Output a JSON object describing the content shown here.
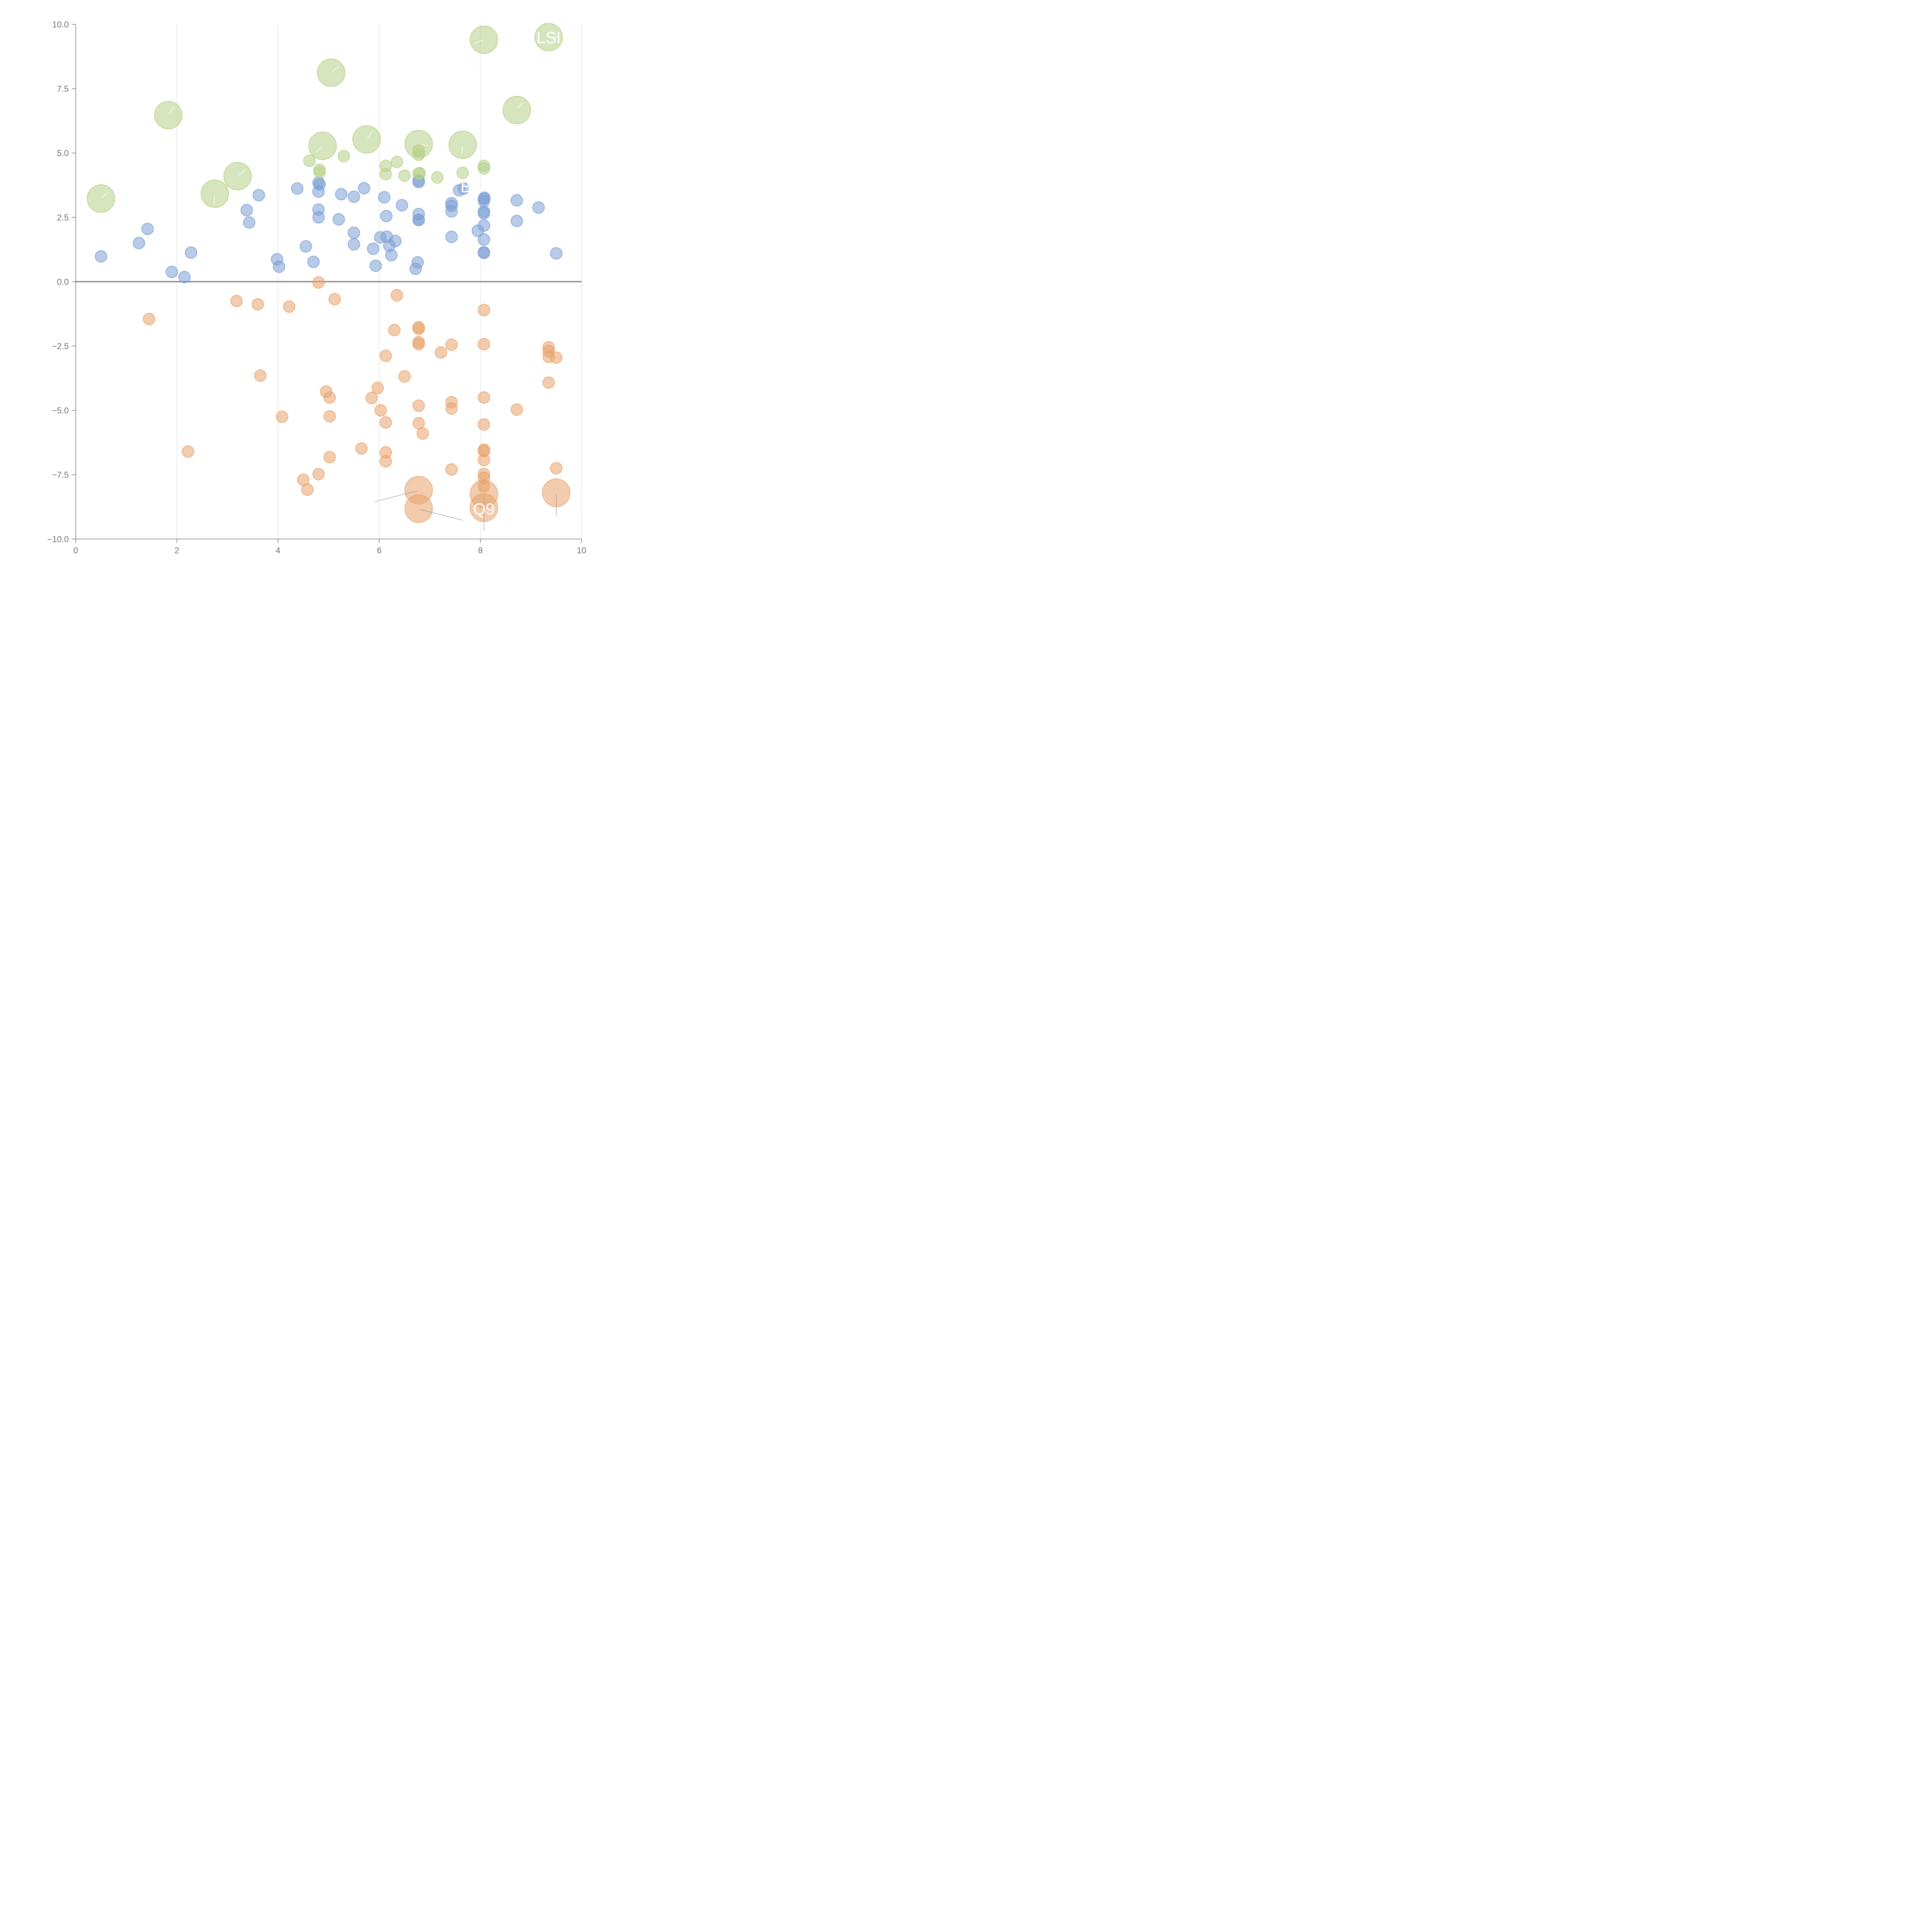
{
  "chart_data": {
    "type": "scatter",
    "title": "",
    "xlabel": "",
    "ylabel": "",
    "xlim": [
      0,
      10
    ],
    "ylim": [
      -10,
      10
    ],
    "x_ticks": [
      0,
      2,
      4,
      6,
      8,
      10
    ],
    "y_ticks": [
      -10,
      -7.5,
      -5,
      -2.5,
      0,
      2.5,
      5,
      7.5,
      10
    ],
    "x_tick_labels": [
      "0",
      "2",
      "4",
      "6",
      "8",
      "10"
    ],
    "y_tick_labels": [
      "−10.0",
      "−7.5",
      "−5.0",
      "−2.5",
      "0.0",
      "2.5",
      "5.0",
      "7.5",
      "10.0"
    ],
    "grid": "vertical",
    "colors": {
      "blue": "#7b9fd4",
      "orange": "#e8a26a",
      "green": "#b5cf86",
      "axis": "#7a7a7a",
      "grid": "#d9d9d9"
    },
    "series": [
      {
        "name": "blue",
        "color_key": "blue",
        "points": [
          [
            0.5,
            0.98,
            1
          ],
          [
            1.25,
            1.5,
            1
          ],
          [
            1.42,
            2.05,
            1
          ],
          [
            1.9,
            0.38,
            1
          ],
          [
            2.15,
            0.18,
            1
          ],
          [
            2.28,
            1.13,
            1
          ],
          [
            3.38,
            2.78,
            1
          ],
          [
            3.43,
            2.3,
            1
          ],
          [
            3.62,
            3.36,
            1
          ],
          [
            3.98,
            0.87,
            1
          ],
          [
            4.02,
            0.58,
            1
          ],
          [
            4.38,
            3.62,
            1
          ],
          [
            4.55,
            1.37,
            1
          ],
          [
            4.7,
            0.77,
            1
          ],
          [
            4.8,
            3.85,
            1
          ],
          [
            4.8,
            3.5,
            1
          ],
          [
            4.8,
            2.8,
            1
          ],
          [
            4.8,
            2.5,
            1
          ],
          [
            4.82,
            3.78,
            1
          ],
          [
            5.2,
            2.42,
            1
          ],
          [
            5.25,
            3.4,
            1
          ],
          [
            5.5,
            3.3,
            1
          ],
          [
            5.5,
            1.9,
            1
          ],
          [
            5.5,
            1.45,
            1
          ],
          [
            5.7,
            3.63,
            1
          ],
          [
            5.88,
            1.28,
            1
          ],
          [
            5.93,
            0.62,
            1
          ],
          [
            6.02,
            1.72,
            1
          ],
          [
            6.1,
            3.28,
            1
          ],
          [
            6.14,
            2.55,
            1
          ],
          [
            6.15,
            1.75,
            1
          ],
          [
            6.2,
            1.4,
            1
          ],
          [
            6.24,
            1.03,
            1
          ],
          [
            6.32,
            1.58,
            1
          ],
          [
            6.45,
            2.97,
            1
          ],
          [
            6.72,
            0.5,
            1
          ],
          [
            6.76,
            0.75,
            1
          ],
          [
            6.78,
            3.93,
            1
          ],
          [
            6.78,
            3.87,
            1
          ],
          [
            6.78,
            2.63,
            1
          ],
          [
            6.78,
            2.4,
            1
          ],
          [
            6.78,
            2.4,
            1
          ],
          [
            7.43,
            3.05,
            1
          ],
          [
            7.43,
            2.95,
            1
          ],
          [
            7.43,
            2.73,
            1
          ],
          [
            7.43,
            1.74,
            1
          ],
          [
            7.58,
            3.55,
            1
          ],
          [
            7.67,
            3.62,
            1
          ],
          [
            7.95,
            1.98,
            1
          ],
          [
            8.07,
            3.22,
            1
          ],
          [
            8.07,
            3.13,
            1
          ],
          [
            8.07,
            2.72,
            1
          ],
          [
            8.07,
            2.66,
            1
          ],
          [
            8.07,
            2.18,
            1
          ],
          [
            8.07,
            1.64,
            1
          ],
          [
            8.07,
            1.14,
            1
          ],
          [
            8.07,
            1.12,
            1
          ],
          [
            8.08,
            3.26,
            1
          ],
          [
            8.72,
            3.16,
            1
          ],
          [
            8.72,
            2.36,
            1
          ],
          [
            9.15,
            2.88,
            1
          ],
          [
            9.5,
            1.1,
            1
          ]
        ]
      },
      {
        "name": "orange",
        "color_key": "orange",
        "points": [
          [
            1.45,
            -1.45,
            1
          ],
          [
            2.22,
            -6.6,
            1
          ],
          [
            3.18,
            -0.75,
            1
          ],
          [
            3.6,
            -0.88,
            1
          ],
          [
            3.65,
            -3.65,
            1
          ],
          [
            4.08,
            -5.25,
            1
          ],
          [
            4.22,
            -0.97,
            1
          ],
          [
            4.5,
            -7.7,
            1
          ],
          [
            4.58,
            -8.08,
            1
          ],
          [
            4.8,
            -0.03,
            1
          ],
          [
            4.8,
            -7.48,
            1
          ],
          [
            4.95,
            -4.27,
            1
          ],
          [
            5.02,
            -4.5,
            1
          ],
          [
            5.02,
            -5.23,
            1
          ],
          [
            5.02,
            -6.82,
            1
          ],
          [
            5.12,
            -0.68,
            1
          ],
          [
            5.65,
            -6.48,
            1
          ],
          [
            5.85,
            -4.52,
            1
          ],
          [
            5.97,
            -4.13,
            1
          ],
          [
            6.03,
            -5.0,
            1
          ],
          [
            6.13,
            -2.88,
            1
          ],
          [
            6.13,
            -5.47,
            1
          ],
          [
            6.13,
            -6.63,
            1
          ],
          [
            6.13,
            -6.98,
            1
          ],
          [
            6.3,
            -1.88,
            1
          ],
          [
            6.35,
            -0.53,
            1
          ],
          [
            6.5,
            -3.68,
            1
          ],
          [
            6.78,
            -1.77,
            1
          ],
          [
            6.78,
            -1.83,
            1
          ],
          [
            6.78,
            -2.35,
            1
          ],
          [
            6.78,
            -2.43,
            1
          ],
          [
            6.78,
            -4.82,
            1
          ],
          [
            6.78,
            -5.5,
            1
          ],
          [
            6.86,
            -5.9,
            1
          ],
          [
            7.22,
            -2.75,
            1
          ],
          [
            7.43,
            -2.45,
            1
          ],
          [
            7.43,
            -4.68,
            1
          ],
          [
            7.43,
            -4.93,
            1
          ],
          [
            7.43,
            -7.3,
            1
          ],
          [
            8.07,
            -1.1,
            1
          ],
          [
            8.07,
            -2.43,
            1
          ],
          [
            8.07,
            -4.5,
            1
          ],
          [
            8.07,
            -5.55,
            1
          ],
          [
            8.07,
            -6.53,
            1
          ],
          [
            8.07,
            -6.58,
            1
          ],
          [
            8.07,
            -6.93,
            1
          ],
          [
            8.07,
            -7.48,
            1
          ],
          [
            8.07,
            -7.62,
            1
          ],
          [
            8.07,
            -7.95,
            1
          ],
          [
            8.72,
            -4.97,
            1
          ],
          [
            9.35,
            -2.55,
            1
          ],
          [
            9.35,
            -2.7,
            1
          ],
          [
            9.35,
            -2.92,
            1
          ],
          [
            9.35,
            -3.92,
            1
          ],
          [
            9.5,
            -2.95,
            1
          ],
          [
            9.5,
            -7.25,
            1
          ],
          [
            6.78,
            -8.1,
            2.38
          ],
          [
            6.78,
            -8.82,
            2.38
          ],
          [
            8.07,
            -8.25,
            2.38
          ],
          [
            8.07,
            -8.78,
            2.38
          ],
          [
            9.5,
            -8.2,
            2.38
          ]
        ]
      },
      {
        "name": "green",
        "color_key": "green",
        "points": [
          [
            4.62,
            4.7,
            1
          ],
          [
            4.82,
            4.35,
            1
          ],
          [
            4.82,
            4.25,
            1
          ],
          [
            5.3,
            4.88,
            1
          ],
          [
            6.13,
            4.5,
            1
          ],
          [
            6.13,
            4.18,
            1
          ],
          [
            6.35,
            4.65,
            1
          ],
          [
            6.5,
            4.12,
            1
          ],
          [
            6.78,
            5.1,
            1
          ],
          [
            6.78,
            4.93,
            1
          ],
          [
            6.78,
            4.2,
            1
          ],
          [
            6.8,
            4.22,
            1
          ],
          [
            7.15,
            4.05,
            1
          ],
          [
            7.65,
            4.23,
            1
          ],
          [
            8.07,
            4.5,
            1
          ],
          [
            8.07,
            4.4,
            1
          ],
          [
            0.5,
            3.23,
            2.38
          ],
          [
            1.83,
            6.47,
            2.38
          ],
          [
            2.75,
            3.42,
            2.38
          ],
          [
            3.2,
            4.1,
            2.38
          ],
          [
            4.88,
            5.28,
            2.38
          ],
          [
            5.05,
            8.12,
            2.38
          ],
          [
            5.75,
            5.53,
            2.38
          ],
          [
            6.78,
            5.35,
            2.38
          ],
          [
            7.65,
            5.32,
            2.38
          ],
          [
            8.07,
            9.4,
            2.38
          ],
          [
            8.72,
            6.67,
            2.38
          ],
          [
            9.35,
            9.5,
            2.38
          ]
        ]
      }
    ],
    "annotations": [
      {
        "text": "LSI",
        "x": 9.35,
        "y": 9.5
      },
      {
        "text": "BA",
        "x": 7.82,
        "y": 3.7
      },
      {
        "text": "Q9",
        "x": 8.07,
        "y": -8.82
      }
    ]
  }
}
